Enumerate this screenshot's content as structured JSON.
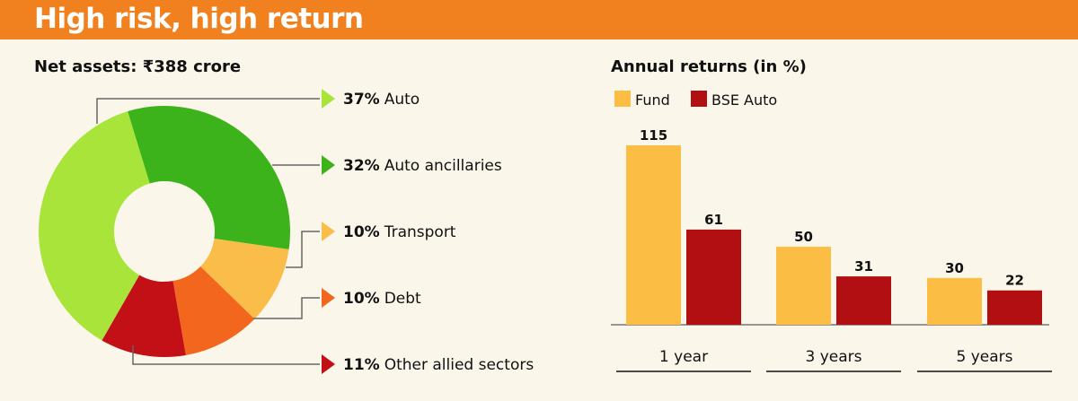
{
  "header": {
    "title": "High risk, high return"
  },
  "chart_data": [
    {
      "type": "pie",
      "title": "Net assets: ₹388 crore",
      "donut": true,
      "slices": [
        {
          "pct": "37%",
          "label": "Auto",
          "value": 37,
          "color": "#a8e43a"
        },
        {
          "pct": "32%",
          "label": "Auto ancillaries",
          "value": 32,
          "color": "#3db31b"
        },
        {
          "pct": "10%",
          "label": "Transport",
          "value": 10,
          "color": "#fbbd4a"
        },
        {
          "pct": "10%",
          "label": "Debt",
          "value": 10,
          "color": "#f2661d"
        },
        {
          "pct": "11%",
          "label": "Other allied sectors",
          "value": 11,
          "color": "#c30f16"
        }
      ]
    },
    {
      "type": "bar",
      "title": "Annual returns (in %)",
      "categories": [
        "1 year",
        "3 years",
        "5 years"
      ],
      "series": [
        {
          "name": "Fund",
          "values": [
            115,
            50,
            30
          ],
          "color": "#fcbd44"
        },
        {
          "name": "BSE Auto",
          "values": [
            61,
            31,
            22
          ],
          "color": "#b20f12"
        }
      ]
    }
  ]
}
